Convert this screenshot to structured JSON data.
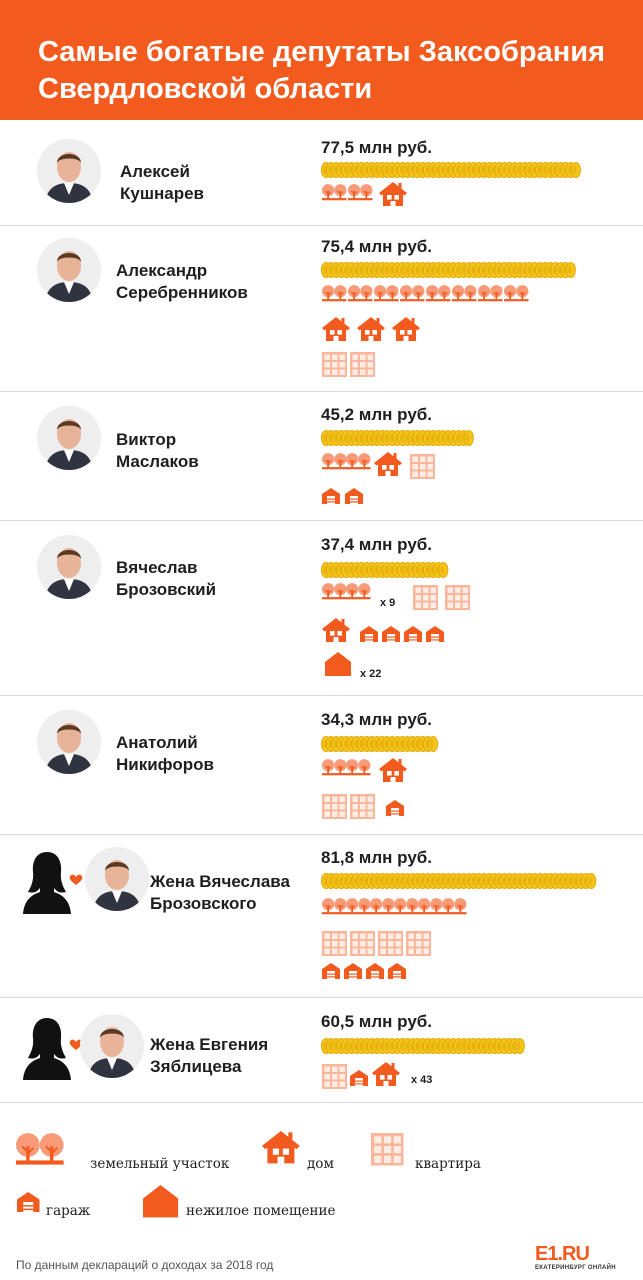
{
  "header": {
    "title": "Самые богатые депутаты Заксобрания Свердловской области"
  },
  "colors": {
    "accent": "#f25a1e",
    "land_fill": "#f79a78",
    "house": "#f25a1e",
    "apartment": "#f9b69a",
    "coin": "#f5c518",
    "coin_edge": "#e0a80c"
  },
  "chart_data": {
    "type": "table",
    "unit": "млн руб.",
    "entries": [
      {
        "name": "Алексей Кушнарев",
        "name_lines": [
          "Алексей",
          "Кушнарев"
        ],
        "value": 77.5,
        "amount_label": "77,5 млн руб.",
        "assets": {
          "land": 2,
          "house": 1
        }
      },
      {
        "name": "Александр Серебренников",
        "name_lines": [
          "Александр",
          "Серебренников"
        ],
        "value": 75.4,
        "amount_label": "75,4 млн руб.",
        "assets": {
          "land": 8,
          "house": 3,
          "apartment": 2
        }
      },
      {
        "name": "Виктор Маслаков",
        "name_lines": [
          "Виктор",
          "Маслаков"
        ],
        "value": 45.2,
        "amount_label": "45,2 млн руб.",
        "assets": {
          "land": 2,
          "house": 1,
          "apartment": 1,
          "garage": 2
        }
      },
      {
        "name": "Вячеслав Брозовский",
        "name_lines": [
          "Вячеслав",
          "Брозовский"
        ],
        "value": 37.4,
        "amount_label": "37,4 млн руб.",
        "assets": {
          "land": 9,
          "apartment": 2,
          "house": 1,
          "garage": 4,
          "nonresidential": 22
        },
        "multipliers": {
          "land": "x 9",
          "nonresidential": "x 22"
        }
      },
      {
        "name": "Анатолий Никифоров",
        "name_lines": [
          "Анатолий",
          "Никифоров"
        ],
        "value": 34.3,
        "amount_label": "34,3 млн руб.",
        "assets": {
          "land": 2,
          "house": 1,
          "apartment": 2,
          "garage": 1
        }
      },
      {
        "name": "Жена Вячеслава Брозовского",
        "name_lines": [
          "Жена Вячеслава",
          "Брозовского"
        ],
        "value": 81.8,
        "amount_label": "81,8 млн руб.",
        "assets": {
          "land": 6,
          "apartment": 4,
          "garage": 4
        }
      },
      {
        "name": "Жена Евгения Зяблицева",
        "name_lines": [
          "Жена Евгения",
          "Зяблицева"
        ],
        "value": 60.5,
        "amount_label": "60,5 млн руб.",
        "assets": {
          "apartment": 1,
          "garage": 1,
          "house": 43
        },
        "multipliers": {
          "house": "x 43"
        }
      }
    ]
  },
  "legend": {
    "land": "земельный участок",
    "house": "дом",
    "apartment": "квартира",
    "garage": "гараж",
    "nonresidential": "нежилое помещение"
  },
  "footer": {
    "source": "По данным деклараций о доходах за 2018 год",
    "logo": "E1.RU",
    "logo_sub": "ЕКАТЕРИНБУРГ ОНЛАЙН"
  }
}
